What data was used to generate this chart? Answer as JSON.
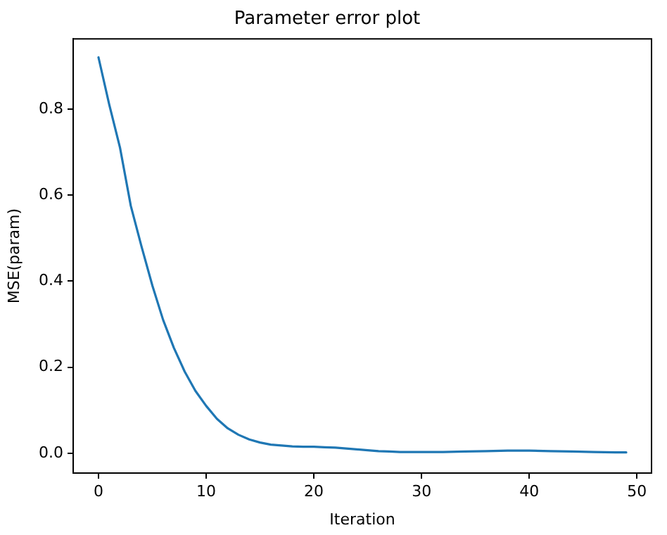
{
  "chart_data": {
    "type": "line",
    "title": "Parameter error plot",
    "xlabel": "Iteration",
    "ylabel": "MSE(param)",
    "x": [
      0,
      1,
      2,
      3,
      4,
      5,
      6,
      7,
      8,
      9,
      10,
      11,
      12,
      13,
      14,
      15,
      16,
      17,
      18,
      19,
      20,
      21,
      22,
      23,
      24,
      25,
      26,
      27,
      28,
      29,
      30,
      32,
      34,
      36,
      38,
      40,
      42,
      44,
      46,
      48,
      49
    ],
    "series": [
      {
        "color": "#1f77b4",
        "values": [
          0.92,
          0.81,
          0.71,
          0.575,
          0.48,
          0.39,
          0.31,
          0.245,
          0.19,
          0.145,
          0.11,
          0.08,
          0.058,
          0.043,
          0.032,
          0.025,
          0.02,
          0.018,
          0.016,
          0.015,
          0.015,
          0.014,
          0.013,
          0.011,
          0.009,
          0.007,
          0.005,
          0.004,
          0.003,
          0.003,
          0.003,
          0.003,
          0.004,
          0.005,
          0.006,
          0.006,
          0.005,
          0.004,
          0.003,
          0.002,
          0.002
        ]
      }
    ],
    "xlim": [
      -2.35,
      51.35
    ],
    "ylim": [
      -0.046,
      0.963
    ],
    "xticks": [
      0,
      10,
      20,
      30,
      40,
      50
    ],
    "yticks": [
      {
        "value": 0,
        "label": "0.0"
      },
      {
        "value": 0.2,
        "label": "0.2"
      },
      {
        "value": 0.4,
        "label": "0.4"
      },
      {
        "value": 0.6,
        "label": "0.6"
      },
      {
        "value": 0.8,
        "label": "0.8"
      }
    ],
    "grid": false,
    "legend": false,
    "marker": "none",
    "line_style": "solid"
  }
}
